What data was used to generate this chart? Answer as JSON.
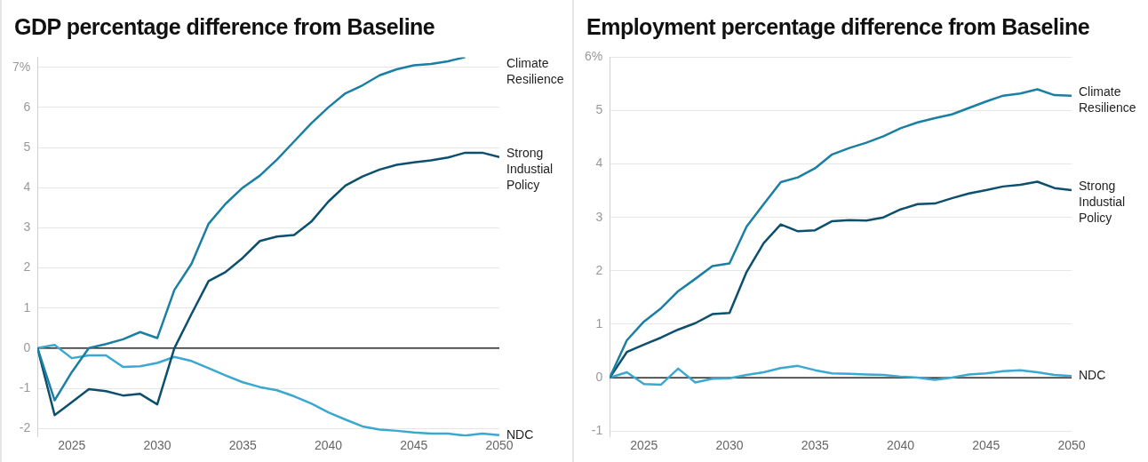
{
  "chart_data": [
    {
      "type": "line",
      "title": "GDP percentage difference from Baseline",
      "x": [
        2023,
        2024,
        2025,
        2026,
        2027,
        2028,
        2029,
        2030,
        2031,
        2032,
        2033,
        2034,
        2035,
        2036,
        2037,
        2038,
        2039,
        2040,
        2041,
        2042,
        2043,
        2044,
        2045,
        2046,
        2047,
        2048,
        2049,
        2050
      ],
      "series": [
        {
          "name": "Climate Resilience",
          "color": "#1a7fa3",
          "values": [
            0,
            -1.3,
            -0.6,
            0,
            0.1,
            0.22,
            0.4,
            0.25,
            1.45,
            2.1,
            3.1,
            3.6,
            4.0,
            4.3,
            4.7,
            5.15,
            5.6,
            6.0,
            6.35,
            6.55,
            6.8,
            6.95,
            7.05,
            7.08,
            7.15,
            7.25,
            null,
            null
          ]
        },
        {
          "name": "Strong Industial Policy",
          "color": "#0d4f6e",
          "values": [
            0,
            -1.67,
            -1.35,
            -1.02,
            -1.07,
            -1.18,
            -1.14,
            -1.4,
            0,
            0.85,
            1.67,
            1.9,
            2.25,
            2.67,
            2.78,
            2.82,
            3.15,
            3.65,
            4.05,
            4.28,
            4.45,
            4.57,
            4.63,
            4.68,
            4.75,
            4.87,
            4.87,
            4.76
          ]
        },
        {
          "name": "NDC",
          "color": "#3aa8cf",
          "values": [
            0,
            0.08,
            -0.25,
            -0.18,
            -0.18,
            -0.47,
            -0.45,
            -0.37,
            -0.22,
            -0.32,
            -0.5,
            -0.68,
            -0.85,
            -0.97,
            -1.05,
            -1.2,
            -1.38,
            -1.6,
            -1.78,
            -1.95,
            -2.03,
            -2.06,
            -2.1,
            -2.13,
            -2.13,
            -2.18,
            -2.13,
            -2.17
          ]
        }
      ],
      "xlim": [
        2023,
        2050
      ],
      "xticks": [
        2025,
        2030,
        2035,
        2040,
        2045,
        2050
      ],
      "ylim": [
        -2.2,
        7.25
      ],
      "yticks": [
        -2,
        -1,
        0,
        1,
        2,
        3,
        4,
        5,
        6,
        {
          "value": 7,
          "label": "7%"
        }
      ],
      "ref_lines": [
        {
          "axis": "y",
          "value": 0,
          "color": "#000000"
        }
      ],
      "grid": "y",
      "legend": false,
      "marker": "none",
      "line_style": "solid"
    },
    {
      "type": "line",
      "title": "Employment percentage difference from Baseline",
      "x": [
        2023,
        2024,
        2025,
        2026,
        2027,
        2028,
        2029,
        2030,
        2031,
        2032,
        2033,
        2034,
        2035,
        2036,
        2037,
        2038,
        2039,
        2040,
        2041,
        2042,
        2043,
        2044,
        2045,
        2046,
        2047,
        2048,
        2049,
        2050
      ],
      "series": [
        {
          "name": "Climate Resilience",
          "color": "#1a7fa3",
          "values": [
            0,
            0.7,
            1.05,
            1.3,
            1.62,
            1.85,
            2.09,
            2.14,
            2.83,
            3.25,
            3.66,
            3.75,
            3.92,
            4.18,
            4.3,
            4.4,
            4.52,
            4.67,
            4.78,
            4.86,
            4.93,
            5.05,
            5.17,
            5.28,
            5.32,
            5.4,
            5.29,
            5.28
          ]
        },
        {
          "name": "Strong Industial Policy",
          "color": "#0d4f6e",
          "values": [
            0,
            0.48,
            0.62,
            0.75,
            0.9,
            1.02,
            1.19,
            1.21,
            1.98,
            2.52,
            2.87,
            2.74,
            2.76,
            2.93,
            2.95,
            2.94,
            3.0,
            3.15,
            3.25,
            3.26,
            3.36,
            3.45,
            3.51,
            3.58,
            3.61,
            3.67,
            3.55,
            3.51
          ]
        },
        {
          "name": "NDC",
          "color": "#3aa8cf",
          "values": [
            0,
            0.1,
            -0.12,
            -0.13,
            0.17,
            -0.09,
            -0.02,
            -0.01,
            0.05,
            0.1,
            0.18,
            0.22,
            0.14,
            0.08,
            0.07,
            0.06,
            0.05,
            0.02,
            0,
            -0.04,
            0,
            0.06,
            0.08,
            0.12,
            0.14,
            0.1,
            0.05,
            0.03
          ]
        }
      ],
      "xlim": [
        2023,
        2050
      ],
      "xticks": [
        2025,
        2030,
        2035,
        2040,
        2045,
        2050
      ],
      "ylim": [
        -1.1,
        6
      ],
      "yticks": [
        -1,
        0,
        1,
        2,
        3,
        4,
        5,
        {
          "value": 6,
          "label": "6%"
        }
      ],
      "ref_lines": [
        {
          "axis": "y",
          "value": 0,
          "color": "#000000"
        }
      ],
      "grid": "y",
      "legend": false,
      "marker": "none",
      "line_style": "solid"
    }
  ]
}
